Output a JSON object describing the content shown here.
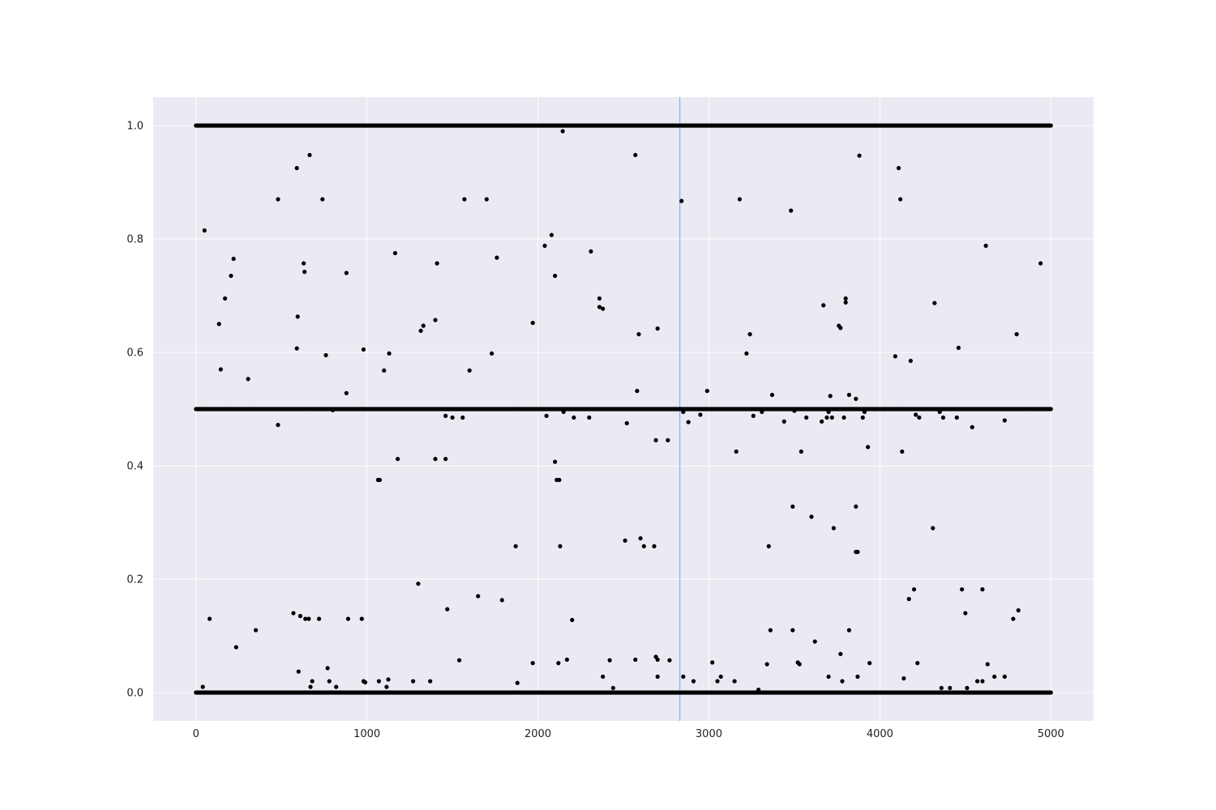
{
  "chart_data": {
    "type": "scatter",
    "title": "",
    "xlabel": "",
    "ylabel": "",
    "xlim": [
      -250,
      5250
    ],
    "ylim": [
      -0.05,
      1.05
    ],
    "grid": true,
    "xticks": [
      0,
      1000,
      2000,
      3000,
      4000,
      5000
    ],
    "yticks": [
      0.0,
      0.2,
      0.4,
      0.6,
      0.8,
      1.0
    ],
    "xtick_labels": [
      "0",
      "1000",
      "2000",
      "3000",
      "4000",
      "5000"
    ],
    "ytick_labels": [
      "0.0",
      "0.2",
      "0.4",
      "0.6",
      "0.8",
      "1.0"
    ],
    "vline": {
      "x": 2830
    },
    "colors": {
      "background": "#EAEAF2",
      "grid": "#FFFFFF",
      "points": "#000000",
      "vline": "#8AB4F8"
    },
    "series": [
      {
        "bands": [
          {
            "y": 1.0,
            "x_start": 0,
            "x_end": 5000,
            "count": 1000
          },
          {
            "y": 0.5,
            "x_start": 0,
            "x_end": 5000,
            "count": 1000
          },
          {
            "y": 0.0,
            "x_start": 0,
            "x_end": 5000,
            "count": 1000
          }
        ],
        "points": [
          [
            50,
            0.815
          ],
          [
            80,
            0.13
          ],
          [
            40,
            0.01
          ],
          [
            135,
            0.65
          ],
          [
            145,
            0.57
          ],
          [
            170,
            0.695
          ],
          [
            205,
            0.735
          ],
          [
            220,
            0.765
          ],
          [
            235,
            0.08
          ],
          [
            200,
            0.5
          ],
          [
            305,
            0.553
          ],
          [
            350,
            0.11
          ],
          [
            320,
            0.5
          ],
          [
            480,
            0.87
          ],
          [
            480,
            0.472
          ],
          [
            570,
            0.14
          ],
          [
            590,
            0.925
          ],
          [
            590,
            0.607
          ],
          [
            595,
            0.663
          ],
          [
            600,
            0.037
          ],
          [
            610,
            0.135
          ],
          [
            630,
            0.757
          ],
          [
            635,
            0.742
          ],
          [
            640,
            0.13
          ],
          [
            660,
            0.13
          ],
          [
            665,
            0.948
          ],
          [
            670,
            0.01
          ],
          [
            680,
            0.02
          ],
          [
            720,
            0.13
          ],
          [
            740,
            0.87
          ],
          [
            760,
            0.595
          ],
          [
            770,
            0.043
          ],
          [
            780,
            0.02
          ],
          [
            800,
            0.498
          ],
          [
            820,
            0.01
          ],
          [
            880,
            0.74
          ],
          [
            880,
            0.528
          ],
          [
            890,
            0.13
          ],
          [
            970,
            0.13
          ],
          [
            980,
            0.605
          ],
          [
            980,
            0.02
          ],
          [
            990,
            0.018
          ],
          [
            1065,
            0.375
          ],
          [
            1075,
            0.375
          ],
          [
            1070,
            0.02
          ],
          [
            1100,
            0.568
          ],
          [
            1115,
            0.01
          ],
          [
            1125,
            0.023
          ],
          [
            1130,
            0.598
          ],
          [
            1165,
            0.775
          ],
          [
            1180,
            0.412
          ],
          [
            1270,
            0.02
          ],
          [
            1300,
            0.192
          ],
          [
            1315,
            0.638
          ],
          [
            1330,
            0.647
          ],
          [
            1370,
            0.02
          ],
          [
            1400,
            0.657
          ],
          [
            1410,
            0.757
          ],
          [
            1400,
            0.412
          ],
          [
            1460,
            0.412
          ],
          [
            1460,
            0.488
          ],
          [
            1470,
            0.147
          ],
          [
            1500,
            0.485
          ],
          [
            1540,
            0.057
          ],
          [
            1560,
            0.485
          ],
          [
            1570,
            0.87
          ],
          [
            1600,
            0.568
          ],
          [
            1650,
            0.17
          ],
          [
            1700,
            0.87
          ],
          [
            1730,
            0.598
          ],
          [
            1760,
            0.767
          ],
          [
            1790,
            0.163
          ],
          [
            1870,
            0.258
          ],
          [
            1880,
            0.017
          ],
          [
            1970,
            0.652
          ],
          [
            1970,
            0.052
          ],
          [
            2040,
            0.788
          ],
          [
            2050,
            0.488
          ],
          [
            2080,
            0.807
          ],
          [
            2100,
            0.735
          ],
          [
            2100,
            0.407
          ],
          [
            2110,
            0.375
          ],
          [
            2120,
            0.052
          ],
          [
            2130,
            0.258
          ],
          [
            2125,
            0.375
          ],
          [
            2145,
            0.99
          ],
          [
            2150,
            0.495
          ],
          [
            2170,
            0.058
          ],
          [
            2200,
            0.128
          ],
          [
            2210,
            0.485
          ],
          [
            2300,
            0.485
          ],
          [
            2310,
            0.778
          ],
          [
            2360,
            0.695
          ],
          [
            2360,
            0.68
          ],
          [
            2380,
            0.677
          ],
          [
            2380,
            0.028
          ],
          [
            2420,
            0.057
          ],
          [
            2440,
            0.008
          ],
          [
            2510,
            0.268
          ],
          [
            2520,
            0.475
          ],
          [
            2570,
            0.948
          ],
          [
            2570,
            0.058
          ],
          [
            2580,
            0.532
          ],
          [
            2590,
            0.632
          ],
          [
            2600,
            0.272
          ],
          [
            2620,
            0.258
          ],
          [
            2680,
            0.258
          ],
          [
            2690,
            0.445
          ],
          [
            2700,
            0.642
          ],
          [
            2690,
            0.063
          ],
          [
            2700,
            0.058
          ],
          [
            2700,
            0.028
          ],
          [
            2760,
            0.445
          ],
          [
            2770,
            0.057
          ],
          [
            2840,
            0.867
          ],
          [
            2850,
            0.495
          ],
          [
            2850,
            0.028
          ],
          [
            2880,
            0.477
          ],
          [
            2910,
            0.02
          ],
          [
            2950,
            0.49
          ],
          [
            2990,
            0.532
          ],
          [
            3020,
            0.053
          ],
          [
            3050,
            0.02
          ],
          [
            3070,
            0.028
          ],
          [
            3160,
            0.425
          ],
          [
            3150,
            0.02
          ],
          [
            3180,
            0.87
          ],
          [
            3220,
            0.598
          ],
          [
            3240,
            0.632
          ],
          [
            3260,
            0.488
          ],
          [
            3290,
            0.005
          ],
          [
            3310,
            0.495
          ],
          [
            3340,
            0.05
          ],
          [
            3350,
            0.258
          ],
          [
            3360,
            0.11
          ],
          [
            3370,
            0.525
          ],
          [
            3440,
            0.478
          ],
          [
            3480,
            0.85
          ],
          [
            3490,
            0.328
          ],
          [
            3490,
            0.11
          ],
          [
            3500,
            0.497
          ],
          [
            3520,
            0.053
          ],
          [
            3530,
            0.05
          ],
          [
            3540,
            0.425
          ],
          [
            3570,
            0.485
          ],
          [
            3600,
            0.31
          ],
          [
            3620,
            0.09
          ],
          [
            3660,
            0.478
          ],
          [
            3670,
            0.683
          ],
          [
            3690,
            0.485
          ],
          [
            3700,
            0.028
          ],
          [
            3700,
            0.495
          ],
          [
            3710,
            0.523
          ],
          [
            3720,
            0.485
          ],
          [
            3730,
            0.29
          ],
          [
            3760,
            0.647
          ],
          [
            3770,
            0.643
          ],
          [
            3770,
            0.068
          ],
          [
            3780,
            0.02
          ],
          [
            3790,
            0.485
          ],
          [
            3800,
            0.695
          ],
          [
            3800,
            0.688
          ],
          [
            3820,
            0.525
          ],
          [
            3820,
            0.11
          ],
          [
            3860,
            0.328
          ],
          [
            3860,
            0.248
          ],
          [
            3870,
            0.248
          ],
          [
            3860,
            0.518
          ],
          [
            3870,
            0.028
          ],
          [
            3880,
            0.947
          ],
          [
            3900,
            0.485
          ],
          [
            3910,
            0.495
          ],
          [
            3930,
            0.433
          ],
          [
            3940,
            0.052
          ],
          [
            4090,
            0.593
          ],
          [
            4110,
            0.925
          ],
          [
            4120,
            0.87
          ],
          [
            4130,
            0.425
          ],
          [
            4140,
            0.025
          ],
          [
            4170,
            0.165
          ],
          [
            4180,
            0.585
          ],
          [
            4200,
            0.182
          ],
          [
            4210,
            0.49
          ],
          [
            4220,
            0.052
          ],
          [
            4230,
            0.485
          ],
          [
            4310,
            0.29
          ],
          [
            4320,
            0.687
          ],
          [
            4350,
            0.495
          ],
          [
            4360,
            0.008
          ],
          [
            4370,
            0.485
          ],
          [
            4410,
            0.008
          ],
          [
            4450,
            0.485
          ],
          [
            4460,
            0.608
          ],
          [
            4480,
            0.182
          ],
          [
            4500,
            0.14
          ],
          [
            4510,
            0.008
          ],
          [
            4540,
            0.468
          ],
          [
            4570,
            0.02
          ],
          [
            4600,
            0.02
          ],
          [
            4600,
            0.182
          ],
          [
            4620,
            0.788
          ],
          [
            4630,
            0.05
          ],
          [
            4670,
            0.028
          ],
          [
            4730,
            0.028
          ],
          [
            4730,
            0.48
          ],
          [
            4780,
            0.13
          ],
          [
            4800,
            0.632
          ],
          [
            4810,
            0.145
          ],
          [
            4940,
            0.757
          ]
        ]
      }
    ]
  }
}
